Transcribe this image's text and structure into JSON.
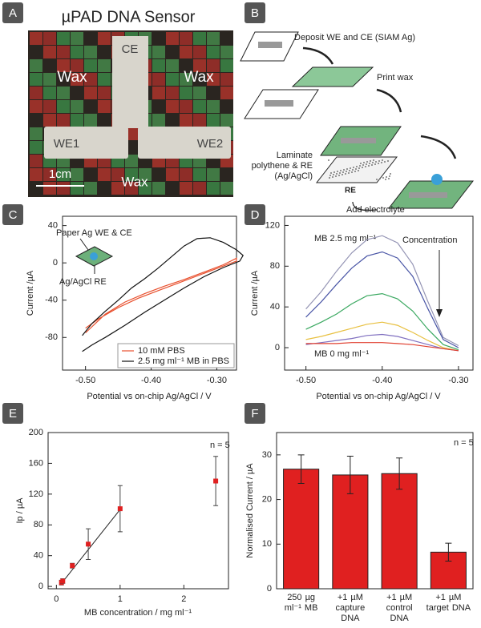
{
  "panel_labels": [
    "A",
    "B",
    "C",
    "D",
    "E",
    "F"
  ],
  "photo": {
    "title": "µPAD DNA Sensor",
    "labels": [
      "CE",
      "Wax",
      "Wax",
      "WE1",
      "WE2",
      "Wax"
    ],
    "scale_bar": "1cm"
  },
  "diagram": {
    "steps": [
      "Deposit WE and CE (SIAM Ag)",
      "Print wax",
      "Laminate polythene & RE (Ag/AgCl)",
      "Add electrolyte"
    ],
    "re_label": "RE"
  },
  "chart_data": [
    {
      "type": "line",
      "xlabel": "Potential vs on-chip Ag/AgCl  / V",
      "ylabel": "Current /µA",
      "xlim": [
        -0.535,
        -0.27
      ],
      "ylim": [
        -115,
        50
      ],
      "xticks": [
        {
          "value": -0.5,
          "label": "-0.50"
        },
        {
          "value": -0.4,
          "label": "-0.40"
        },
        {
          "value": -0.3,
          "label": "-0.30"
        }
      ],
      "yticks": [
        40,
        0,
        -40,
        -80
      ],
      "legend": "lower right",
      "annotations": [
        "Paper Ag WE & CE",
        "Ag/AgCl RE"
      ],
      "series": [
        {
          "name": "10 mM PBS",
          "color": "#e8502e",
          "x": [
            -0.5,
            -0.47,
            -0.44,
            -0.41,
            -0.38,
            -0.35,
            -0.32,
            -0.29,
            -0.27,
            -0.27,
            -0.3,
            -0.33,
            -0.36,
            -0.39,
            -0.42,
            -0.45,
            -0.48,
            -0.5
          ],
          "values": [
            -75,
            -55,
            -42,
            -33,
            -25,
            -18,
            -10,
            -2,
            5,
            2,
            -6,
            -14,
            -22,
            -30,
            -38,
            -48,
            -60,
            -70
          ]
        },
        {
          "name": "2.5 mg ml⁻¹  MB in PBS",
          "color": "#111111",
          "x": [
            -0.505,
            -0.49,
            -0.47,
            -0.45,
            -0.43,
            -0.41,
            -0.39,
            -0.37,
            -0.35,
            -0.33,
            -0.31,
            -0.29,
            -0.27,
            -0.26,
            -0.265,
            -0.29,
            -0.32,
            -0.35,
            -0.38,
            -0.41,
            -0.44,
            -0.47,
            -0.49,
            -0.505
          ],
          "values": [
            -78,
            -65,
            -52,
            -40,
            -27,
            -17,
            -6,
            6,
            18,
            26,
            27,
            22,
            14,
            8,
            2,
            -5,
            -15,
            -27,
            -40,
            -53,
            -67,
            -80,
            -88,
            -95
          ]
        }
      ]
    },
    {
      "type": "line",
      "xlabel": "Potential vs on-chip Ag/AgCl  / V",
      "ylabel": "Current /µA",
      "xlim": [
        -0.528,
        -0.281
      ],
      "ylim": [
        -22,
        129
      ],
      "xticks": [
        {
          "value": -0.5,
          "label": "-0.50"
        },
        {
          "value": -0.4,
          "label": "-0.40"
        },
        {
          "value": -0.3,
          "label": "-0.30"
        }
      ],
      "yticks": [
        0,
        40,
        80,
        120
      ],
      "annotations": [
        "MB 2.5 mg ml⁻¹",
        "MB 0 mg ml⁻¹",
        "Concentration"
      ],
      "x": [
        -0.5,
        -0.48,
        -0.46,
        -0.44,
        -0.42,
        -0.4,
        -0.38,
        -0.36,
        -0.34,
        -0.32,
        -0.3
      ],
      "series": [
        {
          "color": "#9494b4",
          "values": [
            38,
            55,
            75,
            93,
            106,
            110,
            103,
            82,
            45,
            10,
            2
          ]
        },
        {
          "color": "#4a56a6",
          "values": [
            30,
            45,
            62,
            78,
            90,
            94,
            88,
            70,
            38,
            8,
            0
          ]
        },
        {
          "color": "#3aa860",
          "values": [
            18,
            25,
            33,
            43,
            51,
            53,
            48,
            36,
            18,
            3,
            -2
          ]
        },
        {
          "color": "#e8c040",
          "values": [
            8,
            11,
            15,
            19,
            23,
            25,
            22,
            15,
            7,
            0,
            -3
          ]
        },
        {
          "color": "#8070c0",
          "values": [
            3,
            5,
            7,
            9,
            12,
            13,
            11,
            7,
            3,
            -1,
            -3
          ]
        },
        {
          "color": "#e04030",
          "values": [
            4,
            4,
            4,
            5,
            5,
            5,
            4,
            3,
            1,
            -1,
            -3
          ]
        }
      ]
    },
    {
      "type": "scatter",
      "xlabel": "MB concentration / mg ml⁻¹",
      "ylabel": "Ip / µA",
      "xlim": [
        -0.13,
        2.7
      ],
      "ylim": [
        -3,
        200
      ],
      "xticks": [
        0,
        1,
        2
      ],
      "yticks": [
        0,
        40,
        80,
        120,
        160,
        200
      ],
      "color": "#e02020",
      "annotations": [
        "n = 5"
      ],
      "x": [
        0.08,
        0.1,
        0.25,
        0.5,
        1.0,
        2.5
      ],
      "values": [
        5,
        7,
        27,
        55,
        101,
        137
      ],
      "errors": [
        3,
        3,
        3,
        20,
        30,
        32
      ],
      "fit": {
        "x": [
          0.08,
          1.0
        ],
        "values": [
          4,
          100
        ]
      }
    },
    {
      "type": "bar",
      "ylabel": "Normalised Current / µA",
      "ylim": [
        0,
        35
      ],
      "yticks": [
        0,
        10,
        20,
        30
      ],
      "color": "#e02020",
      "annotations": [
        "n = 5"
      ],
      "categories": [
        "250 µg ml⁻¹ MB",
        "+1 µM capture DNA",
        "+1 µM control DNA",
        "+1 µM target DNA"
      ],
      "values": [
        26.8,
        25.5,
        25.8,
        8.2
      ],
      "errors": [
        3.2,
        4.2,
        3.5,
        2.0
      ]
    }
  ]
}
